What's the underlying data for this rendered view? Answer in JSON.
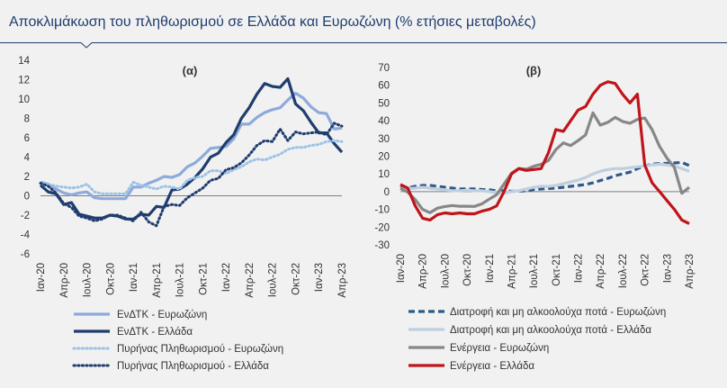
{
  "title": "Αποκλιμάκωση του πληθωρισμού σε Ελλάδα και Ευρωζώνη (% ετήσιες μεταβολές)",
  "chart_data": [
    {
      "type": "line",
      "panel_label": "(α)",
      "ylim": [
        -6,
        14
      ],
      "yticks": [
        14,
        12,
        10,
        8,
        6,
        4,
        2,
        0,
        -2,
        -4,
        -6
      ],
      "xtick_labels": [
        "Ιαν-20",
        "Απρ-20",
        "Ιουλ-20",
        "Οκτ-20",
        "Ιαν-21",
        "Απρ-21",
        "Ιουλ-21",
        "Οκτ-21",
        "Ιαν-22",
        "Απρ-22",
        "Ιουλ-22",
        "Οκτ-22",
        "Ιαν-23",
        "Απρ-23"
      ],
      "x_months": 40,
      "series": [
        {
          "name": "ΕνΔΤΚ - Ευρωζώνη",
          "color": "#8eaadb",
          "style": "solid",
          "values": [
            1.4,
            1.2,
            0.7,
            0.3,
            0.1,
            0.3,
            0.4,
            -0.2,
            -0.3,
            -0.3,
            -0.3,
            -0.3,
            0.9,
            0.9,
            1.3,
            1.6,
            2.0,
            1.9,
            2.2,
            3.0,
            3.4,
            4.1,
            4.9,
            5.0,
            5.1,
            5.9,
            7.4,
            7.4,
            8.1,
            8.6,
            8.9,
            9.1,
            9.9,
            10.6,
            10.1,
            9.2,
            8.6,
            8.5,
            6.9,
            7.0
          ]
        },
        {
          "name": "ΕνΔΤΚ - Ελλάδα",
          "color": "#1f3d6e",
          "style": "solid",
          "values": [
            1.1,
            0.4,
            0.2,
            -0.9,
            -0.7,
            -1.9,
            -2.1,
            -2.3,
            -2.3,
            -2.0,
            -2.1,
            -2.4,
            -2.4,
            -1.9,
            -2.0,
            -1.1,
            -1.2,
            0.6,
            0.7,
            1.2,
            1.9,
            2.8,
            4.0,
            4.4,
            5.5,
            6.3,
            8.0,
            9.1,
            10.5,
            11.6,
            11.3,
            11.2,
            12.1,
            9.5,
            8.8,
            7.6,
            6.5,
            6.5,
            5.4,
            4.5
          ]
        },
        {
          "name": "Πυρήνας Πληθωρισμού - Ευρωζώνη",
          "color": "#9dc3e6",
          "style": "dotted",
          "values": [
            1.3,
            1.2,
            1.0,
            0.9,
            0.8,
            0.9,
            1.2,
            0.4,
            0.2,
            0.2,
            0.2,
            0.2,
            1.4,
            1.1,
            0.9,
            0.7,
            1.0,
            0.9,
            0.7,
            1.6,
            1.9,
            2.0,
            2.6,
            2.6,
            2.3,
            2.7,
            3.0,
            3.5,
            3.8,
            3.7,
            4.0,
            4.3,
            4.8,
            5.0,
            5.0,
            5.2,
            5.3,
            5.6,
            5.7,
            5.6
          ]
        },
        {
          "name": "Πυρήνας Πληθωρισμού - Ελλάδα",
          "color": "#1f3d6e",
          "style": "dotted",
          "values": [
            1.3,
            1.0,
            0.3,
            -0.8,
            -1.2,
            -2.1,
            -2.3,
            -2.6,
            -2.4,
            -2.0,
            -2.0,
            -2.3,
            -2.6,
            -1.7,
            -2.7,
            -3.1,
            -1.1,
            -0.9,
            -1.0,
            -0.2,
            0.3,
            0.8,
            1.6,
            1.8,
            2.7,
            2.9,
            3.4,
            4.2,
            5.2,
            5.7,
            5.6,
            6.9,
            5.7,
            6.6,
            6.4,
            6.5,
            6.6,
            6.3,
            7.5,
            7.2
          ]
        }
      ]
    },
    {
      "type": "line",
      "panel_label": "(β)",
      "ylim": [
        -30,
        70
      ],
      "yticks": [
        70,
        60,
        50,
        40,
        30,
        20,
        10,
        0,
        -10,
        -20,
        -30
      ],
      "xtick_labels": [
        "Ιαν-20",
        "Απρ-20",
        "Ιουλ-20",
        "Οκτ-20",
        "Ιαν-21",
        "Απρ-21",
        "Ιουλ-21",
        "Οκτ-21",
        "Ιαν-22",
        "Απρ-22",
        "Ιουλ-22",
        "Οκτ-22",
        "Ιαν-23",
        "Απρ-23"
      ],
      "x_months": 40,
      "series": [
        {
          "name": "Διατροφή και μη αλκοολούχα ποτά - Ευρωζώνη",
          "color": "#2e5a8a",
          "style": "dashed",
          "values": [
            2.0,
            2.2,
            3.0,
            3.5,
            3.5,
            3.0,
            2.5,
            2.0,
            1.5,
            1.5,
            1.5,
            1.2,
            1.0,
            0.5,
            0.5,
            0.2,
            0.3,
            0.5,
            1.2,
            1.5,
            1.8,
            2.0,
            2.5,
            3.0,
            3.5,
            4.0,
            5.0,
            6.3,
            7.5,
            9.0,
            10.0,
            11.0,
            13.0,
            14.5,
            15.5,
            15.9,
            16.0,
            16.2,
            16.5,
            14.7
          ]
        },
        {
          "name": "Διατροφή και μη αλκοολούχα ποτά - Ελλάδα",
          "color": "#bfcfe0",
          "style": "solid",
          "values": [
            1.5,
            1.8,
            2.0,
            2.5,
            2.0,
            1.5,
            1.0,
            0.5,
            0.5,
            0.8,
            0.5,
            0.5,
            0.0,
            -0.5,
            -0.8,
            0.0,
            0.5,
            1.5,
            2.5,
            3.0,
            3.0,
            3.5,
            4.5,
            5.5,
            6.5,
            8.0,
            10.0,
            11.5,
            12.5,
            13.0,
            13.0,
            13.5,
            14.0,
            14.5,
            15.0,
            15.5,
            15.0,
            14.5,
            13.0,
            11.5
          ]
        },
        {
          "name": "Ενέργεια - Ευρωζώνη",
          "color": "#878787",
          "style": "solid",
          "values": [
            1.9,
            -0.3,
            -4.5,
            -10.0,
            -11.9,
            -9.3,
            -8.4,
            -7.8,
            -8.2,
            -8.2,
            -8.3,
            -6.9,
            -4.2,
            -1.7,
            4.3,
            10.4,
            13.1,
            12.6,
            14.3,
            15.4,
            17.6,
            23.7,
            27.5,
            26.0,
            28.8,
            32.0,
            44.4,
            37.5,
            39.1,
            41.9,
            39.6,
            38.6,
            40.7,
            41.5,
            34.9,
            25.5,
            18.9,
            13.7,
            -0.9,
            2.5
          ]
        },
        {
          "name": "Ενέργεια - Ελλάδα",
          "color": "#c0141a",
          "style": "solid",
          "values": [
            4.0,
            2.0,
            -8.0,
            -15.0,
            -16.0,
            -13.0,
            -12.0,
            -12.5,
            -12.0,
            -12.5,
            -12.5,
            -11.0,
            -10.0,
            -8.0,
            0.0,
            10.0,
            13.0,
            12.0,
            12.5,
            13.0,
            22.0,
            35.0,
            34.0,
            40.0,
            46.0,
            48.0,
            55.0,
            60.0,
            62.0,
            61.0,
            55.0,
            50.0,
            55.0,
            15.0,
            5.0,
            0.0,
            -5.0,
            -10.0,
            -16.0,
            -18.0
          ]
        }
      ]
    }
  ]
}
